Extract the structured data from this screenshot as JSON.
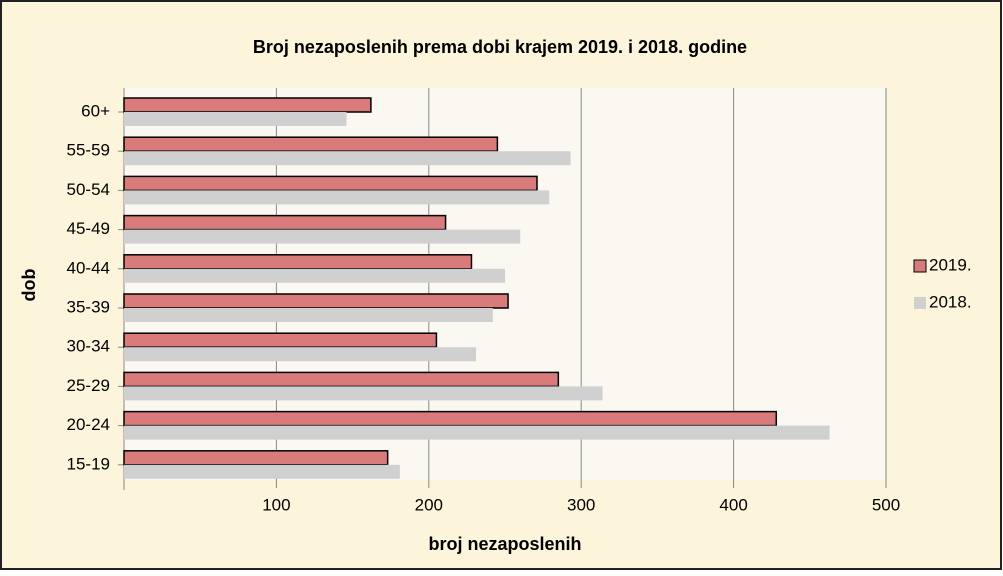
{
  "chart_data": {
    "type": "bar",
    "orientation": "horizontal",
    "title": "Broj nezaposlenih prema dobi krajem 2019. i 2018. godine",
    "x_label": "broj nezaposlenih",
    "y_label": "dob",
    "categories": [
      "60+",
      "55-59",
      "50-54",
      "45-49",
      "40-44",
      "35-39",
      "30-34",
      "25-29",
      "20-24",
      "15-19"
    ],
    "series": [
      {
        "name": "2019.",
        "color": "#d97b7b",
        "values": [
          162,
          245,
          271,
          211,
          228,
          252,
          205,
          285,
          428,
          173
        ]
      },
      {
        "name": "2018.",
        "color": "#d0d0d0",
        "values": [
          146,
          293,
          279,
          260,
          250,
          242,
          231,
          314,
          463,
          181
        ]
      }
    ],
    "xlim": [
      0,
      500
    ],
    "xticks": [
      100,
      200,
      300,
      400,
      500
    ],
    "grid": true,
    "legend": "right"
  }
}
